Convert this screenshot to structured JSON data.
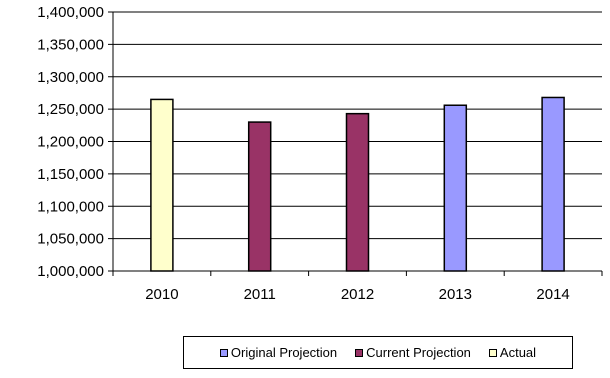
{
  "chart_data": {
    "type": "bar",
    "categories": [
      "2010",
      "2011",
      "2012",
      "2013",
      "2014"
    ],
    "series": [
      {
        "name": "Original Projection",
        "color": "#9999ff",
        "values": [
          null,
          null,
          null,
          1256000,
          1268000
        ]
      },
      {
        "name": "Current Projection",
        "color": "#993366",
        "values": [
          null,
          1230000,
          1243000,
          null,
          null
        ]
      },
      {
        "name": "Actual",
        "color": "#ffffcc",
        "values": [
          1265000,
          null,
          null,
          null,
          null
        ]
      }
    ],
    "y_ticks": [
      "1,000,000",
      "1,050,000",
      "1,100,000",
      "1,150,000",
      "1,200,000",
      "1,250,000",
      "1,300,000",
      "1,350,000",
      "1,400,000"
    ],
    "ylim": [
      1000000,
      1400000
    ],
    "grid": true,
    "legend_position": "bottom",
    "title": "",
    "xlabel": "",
    "ylabel": ""
  }
}
